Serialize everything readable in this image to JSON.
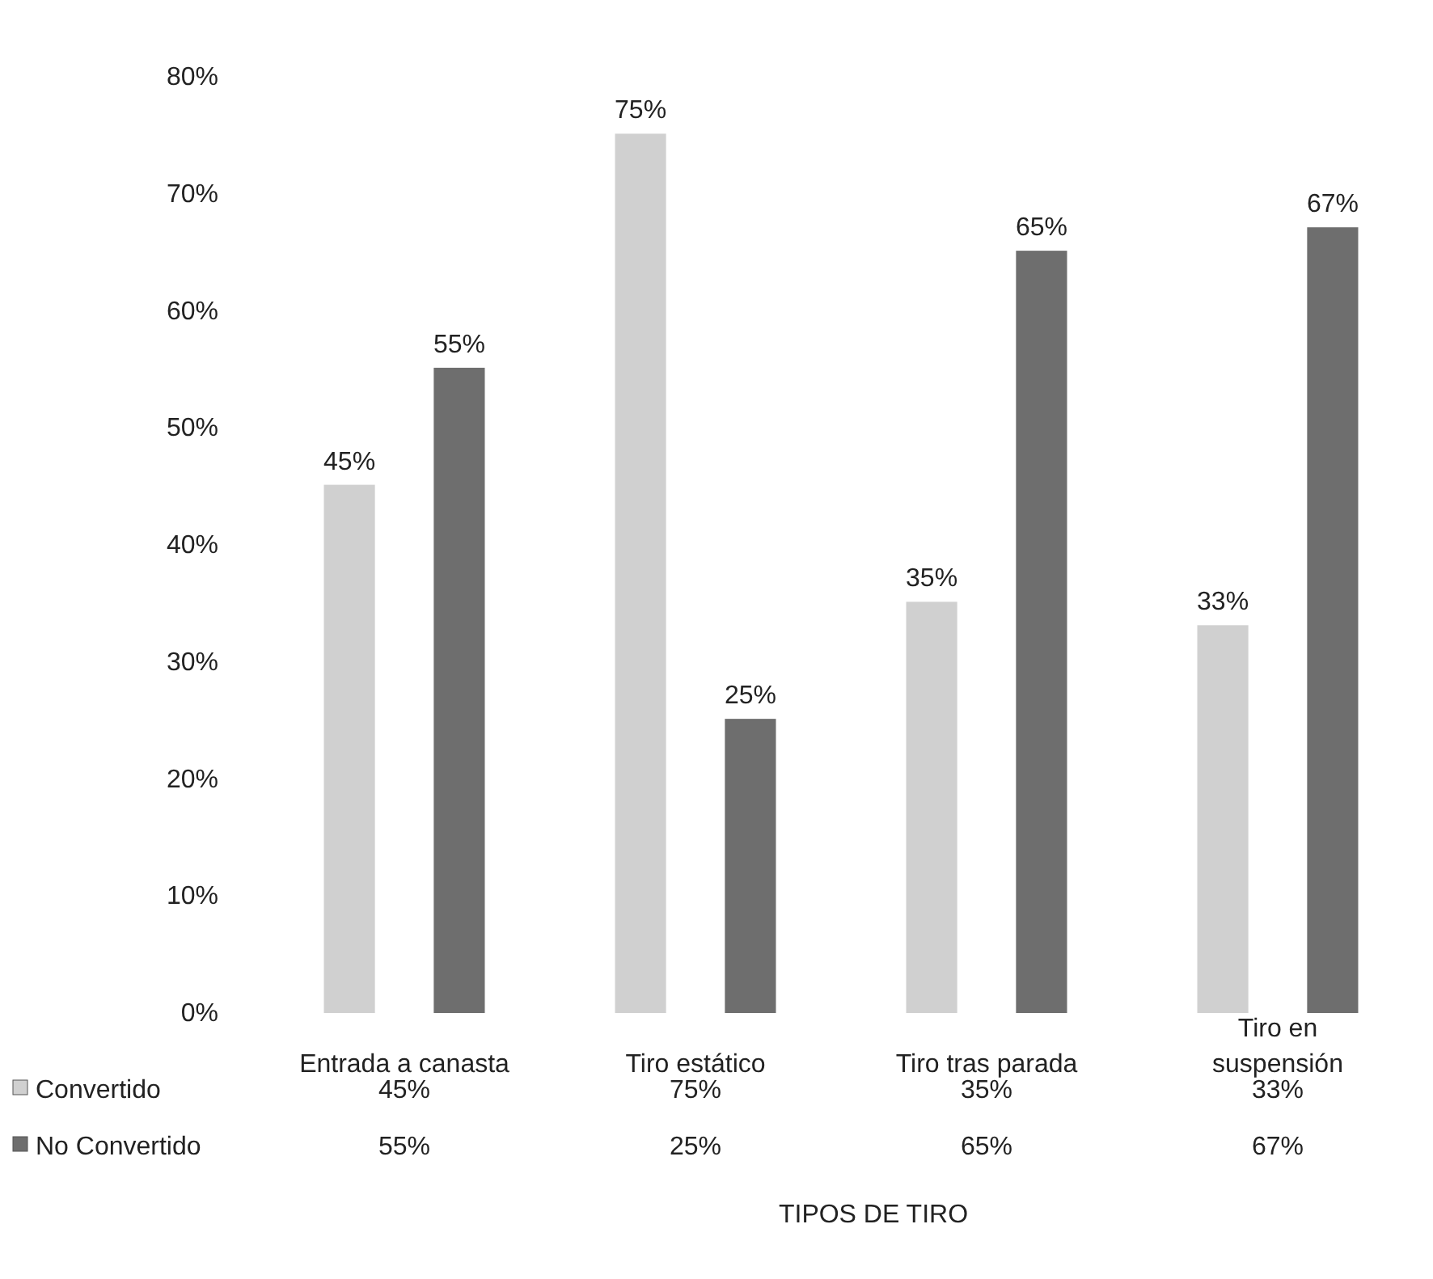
{
  "chart_data": {
    "type": "bar",
    "xlabel": "TIPOS DE TIRO",
    "categories": [
      "Entrada a canasta",
      "Tiro estático",
      "Tiro tras parada",
      "Tiro en suspensión"
    ],
    "series": [
      {
        "name": "Convertido",
        "color": "#d0d0d0",
        "values": [
          45,
          75,
          35,
          33
        ],
        "value_labels": [
          "45%",
          "75%",
          "35%",
          "33%"
        ]
      },
      {
        "name": "No Convertido",
        "color": "#6e6e6e",
        "values": [
          55,
          25,
          65,
          67
        ],
        "value_labels": [
          "55%",
          "25%",
          "65%",
          "67%"
        ]
      }
    ],
    "ylim": [
      0,
      80
    ],
    "yticks": [
      {
        "value": 0,
        "label": "0%"
      },
      {
        "value": 10,
        "label": "10%"
      },
      {
        "value": 20,
        "label": "20%"
      },
      {
        "value": 30,
        "label": "30%"
      },
      {
        "value": 40,
        "label": "40%"
      },
      {
        "value": 50,
        "label": "50%"
      },
      {
        "value": 60,
        "label": "60%"
      },
      {
        "value": 70,
        "label": "70%"
      },
      {
        "value": 80,
        "label": "80%"
      }
    ],
    "grid": false,
    "legend": "bottom"
  }
}
